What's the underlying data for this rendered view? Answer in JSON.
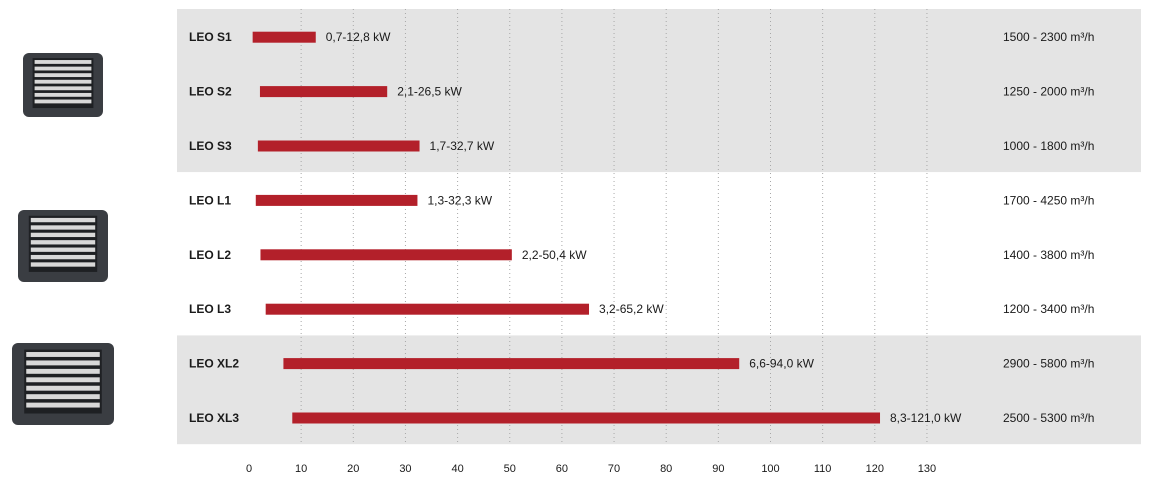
{
  "chart_data": {
    "type": "bar",
    "xlim": [
      0,
      130
    ],
    "xticks": [
      "0",
      "10",
      "20",
      "30",
      "40",
      "50",
      "60",
      "70",
      "80",
      "90",
      "100",
      "110",
      "120",
      "130"
    ],
    "grid": true,
    "bar_color": "#b3202a",
    "group_colors": [
      "#e4e4e4",
      "#ffffff",
      "#e4e4e4"
    ],
    "rows": [
      {
        "label": "LEO S1",
        "min": 0.7,
        "max": 12.8,
        "range_label": "0,7-12,8 kW",
        "airflow": "1500 - 2300 m³/h",
        "group": 0
      },
      {
        "label": "LEO S2",
        "min": 2.1,
        "max": 26.5,
        "range_label": "2,1-26,5 kW",
        "airflow": "1250 - 2000 m³/h",
        "group": 0
      },
      {
        "label": "LEO S3",
        "min": 1.7,
        "max": 32.7,
        "range_label": "1,7-32,7 kW",
        "airflow": "1000 - 1800 m³/h",
        "group": 0
      },
      {
        "label": "LEO L1",
        "min": 1.3,
        "max": 32.3,
        "range_label": "1,3-32,3 kW",
        "airflow": "1700 - 4250 m³/h",
        "group": 1
      },
      {
        "label": "LEO L2",
        "min": 2.2,
        "max": 50.4,
        "range_label": "2,2-50,4 kW",
        "airflow": "1400 - 3800 m³/h",
        "group": 1
      },
      {
        "label": "LEO L3",
        "min": 3.2,
        "max": 65.2,
        "range_label": "3,2-65,2 kW",
        "airflow": "1200 - 3400 m³/h",
        "group": 1
      },
      {
        "label": "LEO XL2",
        "min": 6.6,
        "max": 94.0,
        "range_label": "6,6-94,0 kW",
        "airflow": "2900 - 5800 m³/h",
        "group": 2
      },
      {
        "label": "LEO XL3",
        "min": 8.3,
        "max": 121.0,
        "range_label": "8,3-121,0 kW",
        "airflow": "2500 - 5300 m³/h",
        "group": 2
      }
    ]
  },
  "icons": [
    "heater-unit-small-icon",
    "heater-unit-medium-icon",
    "heater-unit-large-icon"
  ]
}
